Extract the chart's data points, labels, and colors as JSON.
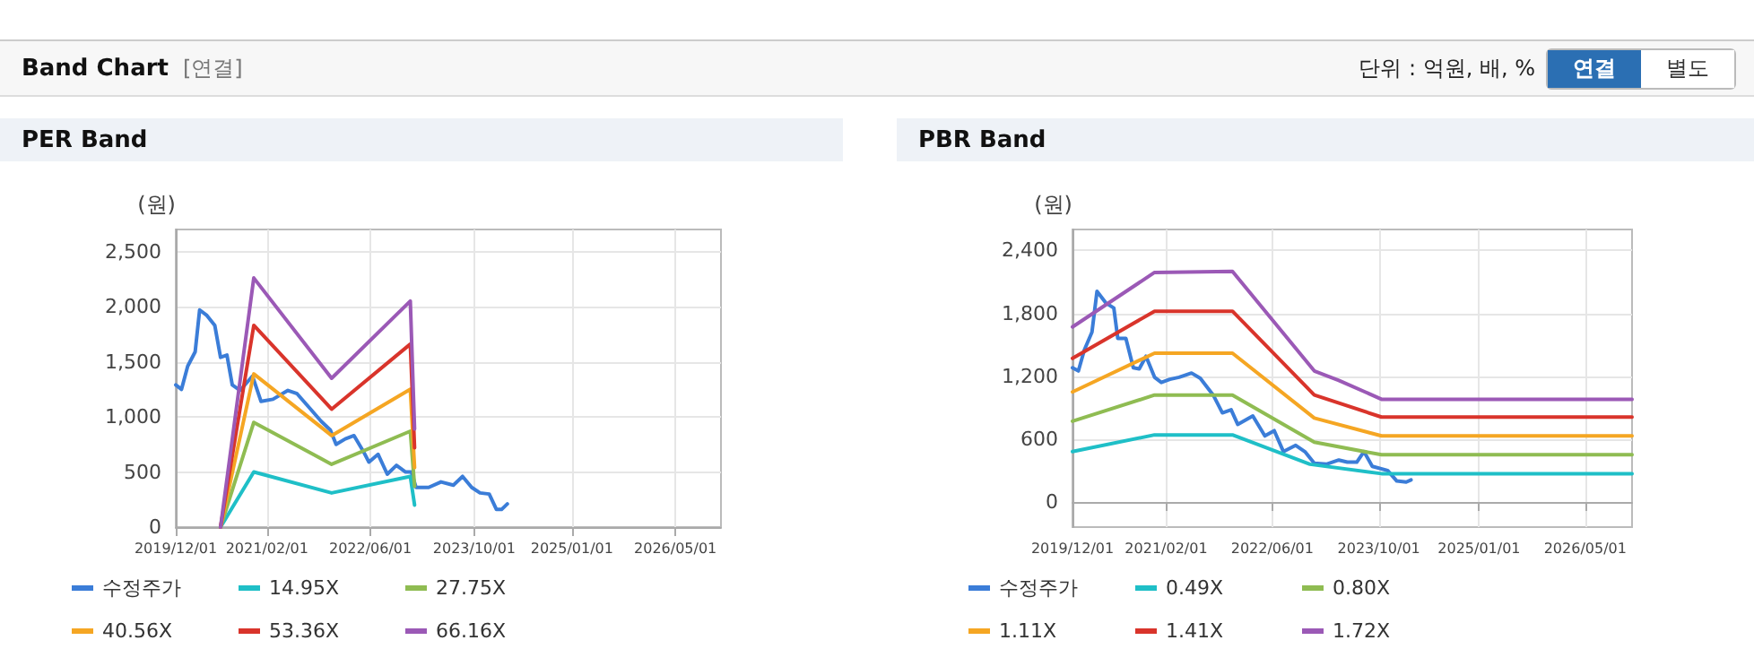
{
  "chart_data": [
    {
      "type": "line",
      "title": "PER Band",
      "ylabel": "(원)",
      "annotations": [
        "Band Chart",
        "[연결]",
        "단위 : 억원, 배, %",
        "연결",
        "별도"
      ],
      "xlim": [
        "2019-12-01",
        "2026-12-01"
      ],
      "xticks": [
        {
          "value": "2019-12-01",
          "label": "2019/12/01"
        },
        {
          "value": "2021-02-01",
          "label": "2021/02/01"
        },
        {
          "value": "2022-06-01",
          "label": "2022/06/01"
        },
        {
          "value": "2023-10-01",
          "label": "2023/10/01"
        },
        {
          "value": "2025-01-01",
          "label": "2025/01/01"
        },
        {
          "value": "2026-05-01",
          "label": "2026/05/01"
        }
      ],
      "ylim": [
        0,
        2700
      ],
      "yticks": [
        0,
        500,
        {
          "value": 1000,
          "label": "1,000"
        },
        {
          "value": 1500,
          "label": "1,500"
        },
        {
          "value": 2000,
          "label": "2,000"
        },
        {
          "value": 2500,
          "label": "2,500"
        }
      ],
      "grid": true,
      "legend": "bottom",
      "marker": "none",
      "line_style": "solid",
      "series": [
        {
          "name": "수정주가",
          "color": "#3b7dd8",
          "x": [
            "2019-12-01",
            "2019-12-28",
            "2020-01-26",
            "2020-03-01",
            "2020-03-22",
            "2020-04-25",
            "2020-06-01",
            "2020-06-28",
            "2020-07-28",
            "2020-08-22",
            "2020-09-28",
            "2020-11-25",
            "2021-01-04",
            "2021-03-01",
            "2021-05-10",
            "2021-06-22",
            "2021-08-20",
            "2021-10-13",
            "2021-11-25",
            "2021-12-22",
            "2022-02-03",
            "2022-03-16",
            "2022-04-28",
            "2022-05-25",
            "2022-07-07",
            "2022-08-19",
            "2022-10-01",
            "2022-11-13",
            "2022-12-10",
            "2023-01-01",
            "2023-03-01",
            "2023-04-28",
            "2023-06-25",
            "2023-08-07",
            "2023-09-19",
            "2023-10-28",
            "2023-12-10",
            "2024-01-13",
            "2024-02-06",
            "2024-03-04"
          ],
          "values": [
            1290,
            1250,
            1460,
            1590,
            1970,
            1920,
            1830,
            1540,
            1560,
            1290,
            1240,
            1370,
            1140,
            1160,
            1240,
            1210,
            1080,
            960,
            880,
            750,
            800,
            830,
            690,
            590,
            660,
            480,
            560,
            500,
            500,
            360,
            360,
            410,
            380,
            460,
            360,
            310,
            300,
            160,
            160,
            210
          ]
        },
        {
          "name": "14.95X",
          "color": "#1fbfc7",
          "x": [
            "2020-06-28",
            "2020-12-01",
            "2021-12-01",
            "2022-12-05",
            "2022-12-25"
          ],
          "values": [
            0,
            500,
            310,
            460,
            200
          ]
        },
        {
          "name": "27.75X",
          "color": "#8fbc52",
          "x": [
            "2020-06-28",
            "2020-12-01",
            "2021-12-01",
            "2022-12-05",
            "2022-12-25"
          ],
          "values": [
            0,
            950,
            570,
            870,
            370
          ]
        },
        {
          "name": "40.56X",
          "color": "#f5a623",
          "x": [
            "2020-06-28",
            "2020-12-01",
            "2021-12-01",
            "2022-12-05",
            "2022-12-25"
          ],
          "values": [
            0,
            1390,
            830,
            1250,
            540
          ]
        },
        {
          "name": "53.36X",
          "color": "#d9342b",
          "x": [
            "2020-06-28",
            "2020-12-01",
            "2021-12-01",
            "2022-12-05",
            "2022-12-25"
          ],
          "values": [
            0,
            1830,
            1070,
            1660,
            720
          ]
        },
        {
          "name": "66.16X",
          "color": "#9b59b6",
          "x": [
            "2020-06-28",
            "2020-12-01",
            "2021-12-01",
            "2022-12-05",
            "2022-12-25"
          ],
          "values": [
            0,
            2260,
            1350,
            2050,
            890
          ]
        }
      ]
    },
    {
      "type": "line",
      "title": "PBR Band",
      "ylabel": "(원)",
      "xlim": [
        "2019-12-01",
        "2026-12-01"
      ],
      "xticks": [
        {
          "value": "2019-12-01",
          "label": "2019/12/01"
        },
        {
          "value": "2021-02-01",
          "label": "2021/02/01"
        },
        {
          "value": "2022-06-01",
          "label": "2022/06/01"
        },
        {
          "value": "2023-10-01",
          "label": "2023/10/01"
        },
        {
          "value": "2025-01-01",
          "label": "2025/01/01"
        },
        {
          "value": "2026-05-01",
          "label": "2026/05/01"
        }
      ],
      "ylim": [
        -240,
        2600
      ],
      "yticks": [
        0,
        600,
        {
          "value": 1200,
          "label": "1,200"
        },
        {
          "value": 1800,
          "label": "1,800"
        },
        {
          "value": 2400,
          "label": "2,400"
        }
      ],
      "grid": true,
      "legend": "bottom",
      "marker": "none",
      "line_style": "solid",
      "series": [
        {
          "name": "수정주가",
          "color": "#3b7dd8",
          "x": [
            "2019-12-01",
            "2019-12-28",
            "2020-01-24",
            "2020-02-28",
            "2020-03-22",
            "2020-05-01",
            "2020-06-07",
            "2020-06-25",
            "2020-08-01",
            "2020-09-04",
            "2020-10-01",
            "2020-11-01",
            "2020-12-10",
            "2021-01-10",
            "2021-02-18",
            "2021-04-01",
            "2021-05-28",
            "2021-07-07",
            "2021-09-04",
            "2021-10-16",
            "2021-11-25",
            "2021-12-25",
            "2022-03-04",
            "2022-04-28",
            "2022-06-10",
            "2022-07-22",
            "2022-09-16",
            "2022-10-28",
            "2022-12-10",
            "2023-02-03",
            "2023-04-01",
            "2023-05-10",
            "2023-06-22",
            "2023-07-25",
            "2023-09-01",
            "2023-11-10",
            "2023-12-22",
            "2024-02-03",
            "2024-02-25"
          ],
          "values": [
            1280,
            1250,
            1450,
            1620,
            2010,
            1900,
            1850,
            1560,
            1560,
            1280,
            1270,
            1390,
            1190,
            1140,
            1170,
            1190,
            1230,
            1180,
            1020,
            850,
            880,
            740,
            820,
            630,
            680,
            480,
            540,
            480,
            370,
            360,
            400,
            380,
            380,
            480,
            340,
            300,
            200,
            190,
            210
          ]
        },
        {
          "name": "0.49X",
          "color": "#1fbfc7",
          "x": [
            "2019-12-01",
            "2020-12-10",
            "2021-12-01",
            "2022-11-20",
            "2023-10-13",
            "2026-12-01"
          ],
          "values": [
            480,
            640,
            640,
            360,
            270,
            270
          ]
        },
        {
          "name": "0.80X",
          "color": "#8fbc52",
          "x": [
            "2019-12-01",
            "2020-12-10",
            "2021-12-01",
            "2022-12-10",
            "2023-10-13",
            "2026-12-01"
          ],
          "values": [
            770,
            1020,
            1020,
            570,
            450,
            450
          ]
        },
        {
          "name": "1.11X",
          "color": "#f5a623",
          "x": [
            "2019-12-01",
            "2020-12-10",
            "2021-12-01",
            "2022-12-10",
            "2023-10-13",
            "2026-12-01"
          ],
          "values": [
            1050,
            1420,
            1420,
            800,
            630,
            630
          ]
        },
        {
          "name": "1.41X",
          "color": "#d9342b",
          "x": [
            "2019-12-01",
            "2020-12-10",
            "2021-12-01",
            "2022-12-10",
            "2023-10-13",
            "2026-12-01"
          ],
          "values": [
            1370,
            1820,
            1820,
            1020,
            810,
            810
          ]
        },
        {
          "name": "1.72X",
          "color": "#9b59b6",
          "x": [
            "2019-12-01",
            "2020-12-10",
            "2021-12-01",
            "2022-12-10",
            "2023-04-01",
            "2023-10-13",
            "2026-12-01"
          ],
          "values": [
            1670,
            2190,
            2200,
            1250,
            1160,
            980,
            980
          ]
        }
      ]
    }
  ]
}
